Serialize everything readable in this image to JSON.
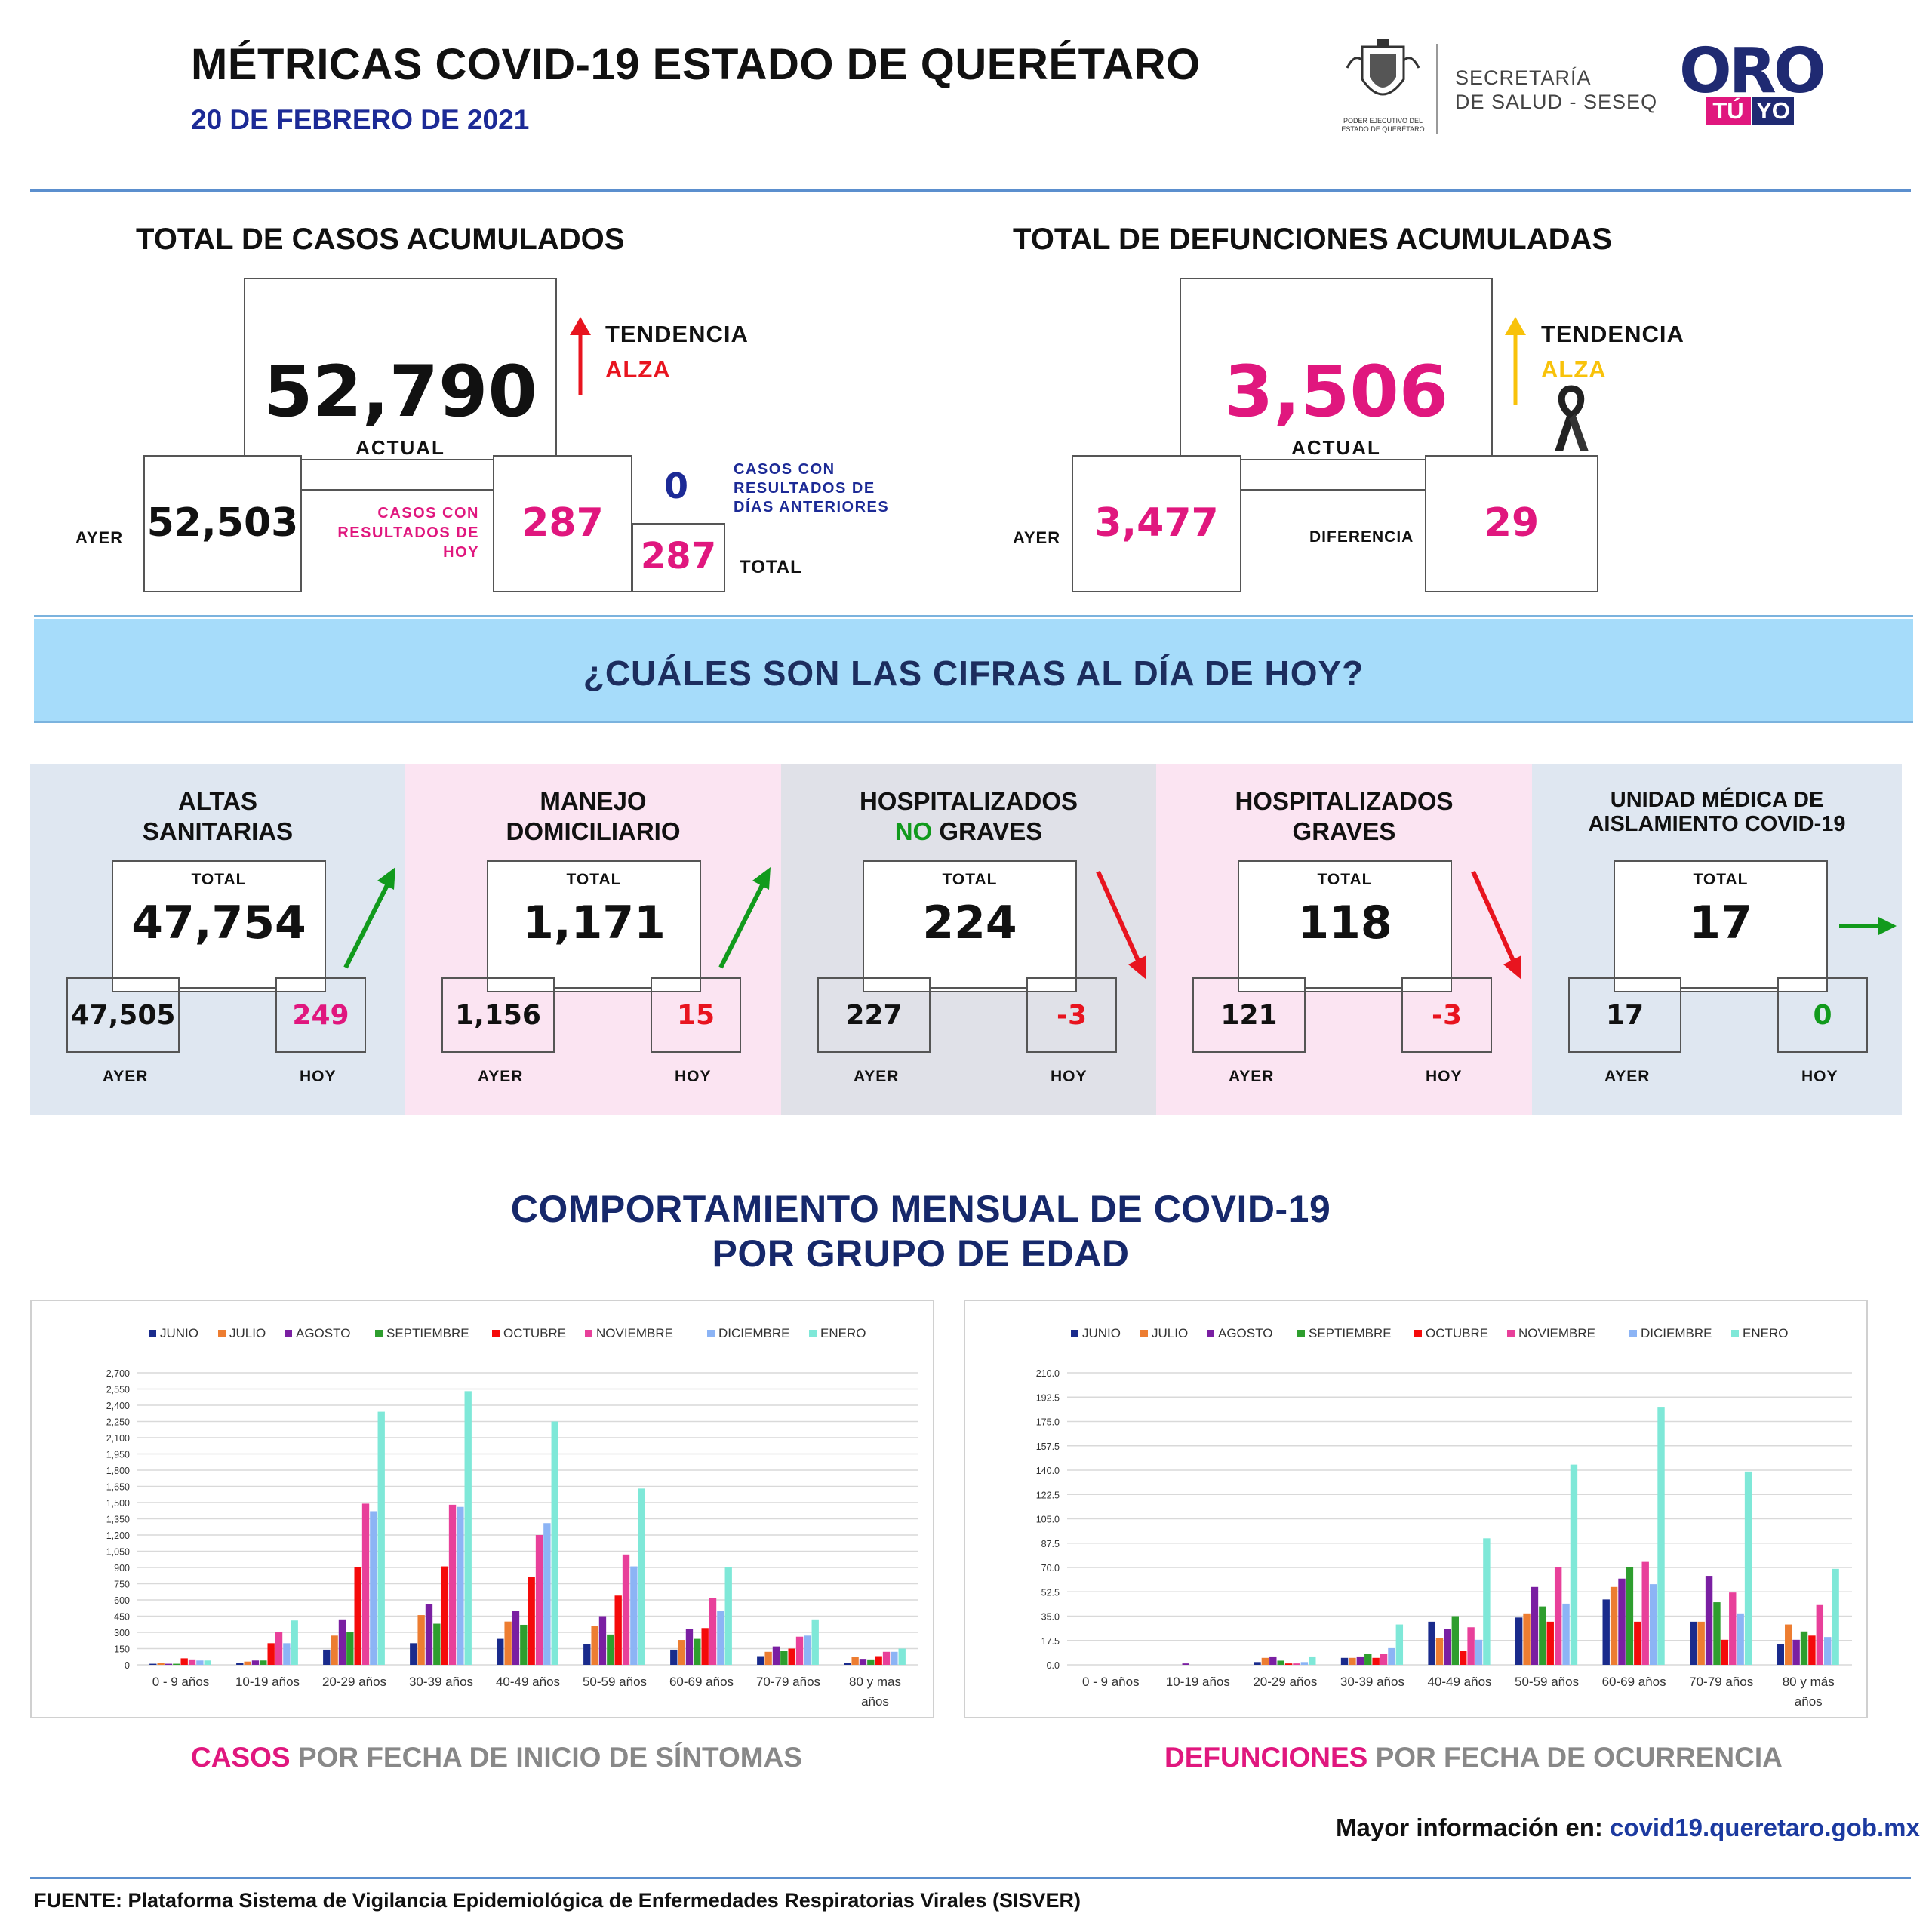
{
  "header": {
    "title": "MÉTRICAS COVID-19 ESTADO DE QUERÉTARO",
    "date": "20 DE FEBRERO DE 2021",
    "gov_logo_text": "PODER EJECUTIVO DEL ESTADO DE QUERÉTARO",
    "secretaria_line1": "SECRETARÍA",
    "secretaria_line2": "DE SALUD - SESEQ",
    "oro_logo": "ORO",
    "oro_tu": "TÚ",
    "oro_yo": "YO"
  },
  "cases": {
    "title": "TOTAL DE CASOS ACUMULADOS",
    "actual": "52,790",
    "actual_label": "ACTUAL",
    "trend_label": "TENDENCIA",
    "trend_value": "ALZA",
    "yesterday_label": "AYER",
    "yesterday": "52,503",
    "today_results_label": "CASOS CON RESULTADOS DE HOY",
    "today_results": "287",
    "previous_days": "0",
    "previous_days_label": "CASOS CON RESULTADOS DE DÍAS ANTERIORES",
    "total": "287",
    "total_label": "TOTAL"
  },
  "deaths": {
    "title": "TOTAL DE DEFUNCIONES ACUMULADAS",
    "actual": "3,506",
    "actual_label": "ACTUAL",
    "trend_label": "TENDENCIA",
    "trend_value": "ALZA",
    "yesterday_label": "AYER",
    "yesterday": "3,477",
    "difference_label": "DIFERENCIA",
    "difference": "29"
  },
  "banner": {
    "text": "¿CUÁLES SON LAS CIFRAS AL DÍA DE HOY?"
  },
  "panels": [
    {
      "title1": "ALTAS",
      "title2": "SANITARIAS",
      "total_label": "TOTAL",
      "total": "47,754",
      "yesterday": "47,505",
      "today": "249",
      "yesterday_label": "AYER",
      "today_label": "HOY",
      "trend": "up",
      "bg": "#dfe7f1",
      "today_color": "#e0177e"
    },
    {
      "title1": "MANEJO",
      "title2": "DOMICILIARIO",
      "total_label": "TOTAL",
      "total": "1,171",
      "yesterday": "1,156",
      "today": "15",
      "yesterday_label": "AYER",
      "today_label": "HOY",
      "trend": "up",
      "bg": "#fbe4f2",
      "today_color": "#e8141f"
    },
    {
      "title1": "HOSPITALIZADOS",
      "title2_green": "NO",
      "title2": " GRAVES",
      "total_label": "TOTAL",
      "total": "224",
      "yesterday": "227",
      "today": "-3",
      "yesterday_label": "AYER",
      "today_label": "HOY",
      "trend": "down",
      "bg": "#e0e1e8",
      "today_color": "#e8141f"
    },
    {
      "title1": "HOSPITALIZADOS",
      "title2": "GRAVES",
      "total_label": "TOTAL",
      "total": "118",
      "yesterday": "121",
      "today": "-3",
      "yesterday_label": "AYER",
      "today_label": "HOY",
      "trend": "down",
      "bg": "#fbe4f2",
      "today_color": "#e8141f"
    },
    {
      "title1": "UNIDAD MÉDICA DE",
      "title2": "AISLAMIENTO COVID-19",
      "total_label": "TOTAL",
      "total": "17",
      "yesterday": "17",
      "today": "0",
      "yesterday_label": "AYER",
      "today_label": "HOY",
      "trend": "flat",
      "bg": "#dfe7f1",
      "today_color": "#119a1c"
    }
  ],
  "section": {
    "title1": "COMPORTAMIENTO MENSUAL DE COVID-19",
    "title2": "POR GRUPO DE EDAD"
  },
  "chart_captions": {
    "cases_highlight": "CASOS",
    "cases_rest": " POR FECHA DE INICIO DE SÍNTOMAS",
    "deaths_highlight": "DEFUNCIONES",
    "deaths_rest": " POR FECHA DE OCURRENCIA"
  },
  "colors": {
    "series": [
      "#1a2b8c",
      "#ed7d31",
      "#7a1fa2",
      "#2e9e2e",
      "#f50a0a",
      "#e8409a",
      "#8cb4f5",
      "#7fe8d8"
    ],
    "pink": "#e0177e",
    "gold": "#f8c20a",
    "navy": "#16286b"
  },
  "chart_data": [
    {
      "type": "bar",
      "title": "",
      "categories": [
        "0 - 9 años",
        "10-19 años",
        "20-29 años",
        "30-39 años",
        "40-49 años",
        "50-59 años",
        "60-69 años",
        "70-79 años",
        "80 y mas años"
      ],
      "ylim": [
        0,
        2700
      ],
      "yticks": [
        "0",
        "150",
        "300",
        "450",
        "600",
        "750",
        "900",
        "1,050",
        "1,200",
        "1,350",
        "1,500",
        "1,650",
        "1,800",
        "1,950",
        "2,100",
        "2,250",
        "2,400",
        "2,550",
        "2,700"
      ],
      "legend_position": "top",
      "grid": true,
      "series": [
        {
          "name": "JUNIO",
          "values": [
            10,
            15,
            140,
            200,
            240,
            190,
            140,
            80,
            20
          ]
        },
        {
          "name": "JULIO",
          "values": [
            15,
            30,
            270,
            460,
            400,
            360,
            230,
            120,
            70
          ]
        },
        {
          "name": "AGOSTO",
          "values": [
            10,
            40,
            420,
            560,
            500,
            450,
            330,
            170,
            55
          ]
        },
        {
          "name": "SEPTIEMBRE",
          "values": [
            10,
            40,
            300,
            380,
            370,
            280,
            240,
            130,
            50
          ]
        },
        {
          "name": "OCTUBRE",
          "values": [
            60,
            200,
            900,
            910,
            810,
            640,
            340,
            150,
            80
          ]
        },
        {
          "name": "NOVIEMBRE",
          "values": [
            50,
            300,
            1490,
            1480,
            1200,
            1020,
            620,
            260,
            120
          ]
        },
        {
          "name": "DICIEMBRE",
          "values": [
            40,
            200,
            1420,
            1460,
            1310,
            910,
            500,
            270,
            120
          ]
        },
        {
          "name": "ENERO",
          "values": [
            40,
            410,
            2340,
            2530,
            2250,
            1630,
            900,
            420,
            150
          ]
        }
      ]
    },
    {
      "type": "bar",
      "title": "",
      "categories": [
        "0 - 9 años",
        "10-19 años",
        "20-29 años",
        "30-39 años",
        "40-49 años",
        "50-59 años",
        "60-69 años",
        "70-79 años",
        "80 y más años"
      ],
      "ylim": [
        0,
        210
      ],
      "yticks": [
        "0.0",
        "17.5",
        "35.0",
        "52.5",
        "70.0",
        "87.5",
        "105.0",
        "122.5",
        "140.0",
        "157.5",
        "175.0",
        "192.5",
        "210.0"
      ],
      "legend_position": "top",
      "grid": true,
      "series": [
        {
          "name": "JUNIO",
          "values": [
            0,
            0,
            2,
            5,
            31,
            34,
            47,
            31,
            15
          ]
        },
        {
          "name": "JULIO",
          "values": [
            0,
            0,
            5,
            5,
            19,
            37,
            56,
            31,
            29
          ]
        },
        {
          "name": "AGOSTO",
          "values": [
            0,
            1,
            6,
            6,
            26,
            56,
            62,
            64,
            18
          ]
        },
        {
          "name": "SEPTIEMBRE",
          "values": [
            0,
            0,
            3,
            8,
            35,
            42,
            70,
            45,
            24
          ]
        },
        {
          "name": "OCTUBRE",
          "values": [
            0,
            0,
            1,
            5,
            10,
            31,
            31,
            18,
            21
          ]
        },
        {
          "name": "NOVIEMBRE",
          "values": [
            0,
            0,
            1,
            8,
            27,
            70,
            74,
            52,
            43
          ]
        },
        {
          "name": "DICIEMBRE",
          "values": [
            0,
            0,
            2,
            12,
            18,
            44,
            58,
            37,
            20
          ]
        },
        {
          "name": "ENERO",
          "values": [
            0,
            0,
            6,
            29,
            91,
            144,
            185,
            139,
            69
          ]
        }
      ]
    }
  ],
  "footer": {
    "more_info_label": "Mayor información en:",
    "more_info_url": "covid19.queretaro.gob.mx",
    "source": "FUENTE: Plataforma Sistema  de Vigilancia Epidemiológica de Enfermedades Respiratorias Virales (SISVER)"
  }
}
